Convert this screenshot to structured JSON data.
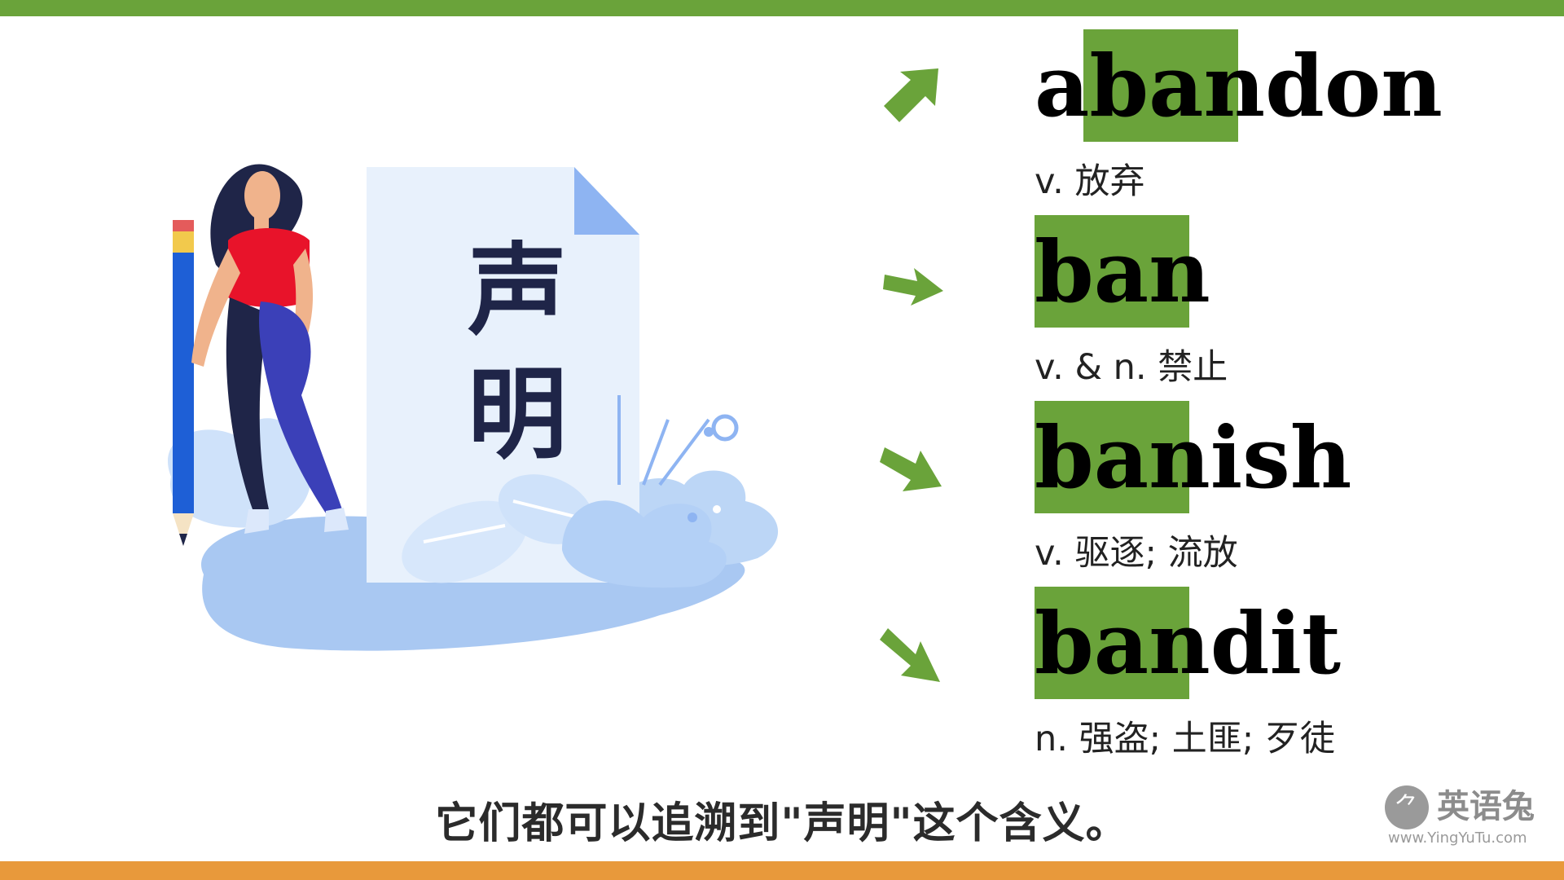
{
  "illustration": {
    "document_text": [
      "声",
      "明"
    ]
  },
  "words": [
    {
      "word": "abandon",
      "highlight": "ban",
      "meaning": "v. 放弃"
    },
    {
      "word": "ban",
      "highlight": "ban",
      "meaning": "v. & n. 禁止"
    },
    {
      "word": "banish",
      "highlight": "ban",
      "meaning": "v. 驱逐; 流放"
    },
    {
      "word": "bandit",
      "highlight": "ban",
      "meaning": "n. 强盗; 土匪; 歹徒"
    }
  ],
  "subtitle": "它们都可以追溯到\"声明\"这个含义。",
  "watermark": {
    "logo_glyph": "⺈",
    "name": "英语兔",
    "url": "www.YingYuTu.com"
  },
  "colors": {
    "accent_green": "#6aa33a",
    "accent_orange": "#e8993b",
    "navy": "#1f2548"
  },
  "icons": [
    "arrow-icon",
    "pencil-icon",
    "document-icon"
  ]
}
